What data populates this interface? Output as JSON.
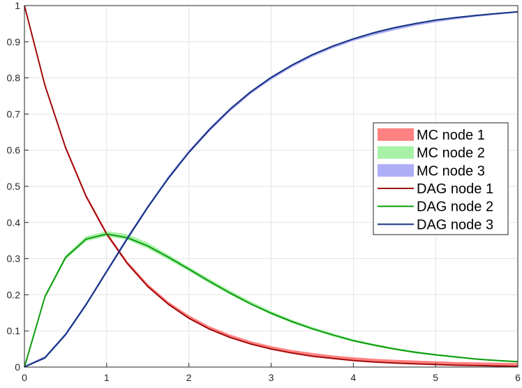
{
  "chart_data": {
    "type": "line",
    "title": "",
    "xlabel": "",
    "ylabel": "",
    "xlim": [
      0,
      6
    ],
    "ylim": [
      0,
      1
    ],
    "xticks": [
      "0",
      "1",
      "2",
      "3",
      "4",
      "5",
      "6"
    ],
    "yticks": [
      "0",
      "0.1",
      "0.2",
      "0.3",
      "0.4",
      "0.5",
      "0.6",
      "0.7",
      "0.8",
      "0.9",
      "1"
    ],
    "grid": true,
    "legend_position": "right",
    "x": [
      0,
      0.25,
      0.5,
      0.75,
      1,
      1.25,
      1.5,
      1.75,
      2,
      2.25,
      2.5,
      2.75,
      3,
      3.25,
      3.5,
      3.75,
      4,
      4.25,
      4.5,
      4.75,
      5,
      5.25,
      5.5,
      5.75,
      6
    ],
    "series": [
      {
        "name": "MC node 1",
        "kind": "band",
        "color": "#ff6b6b",
        "lower": [
          0.995,
          0.774,
          0.603,
          0.468,
          0.364,
          0.283,
          0.22,
          0.171,
          0.133,
          0.103,
          0.08,
          0.062,
          0.048,
          0.037,
          0.029,
          0.022,
          0.017,
          0.013,
          0.01,
          0.008,
          0.006,
          0.004,
          0.003,
          0.002,
          0.001
        ],
        "upper": [
          1.0,
          0.784,
          0.613,
          0.478,
          0.374,
          0.293,
          0.23,
          0.181,
          0.143,
          0.113,
          0.09,
          0.072,
          0.058,
          0.047,
          0.039,
          0.032,
          0.027,
          0.023,
          0.02,
          0.018,
          0.016,
          0.014,
          0.013,
          0.012,
          0.011
        ]
      },
      {
        "name": "MC node 2",
        "kind": "band",
        "color": "#99f099",
        "lower": [
          0.0,
          0.19,
          0.297,
          0.348,
          0.362,
          0.352,
          0.328,
          0.297,
          0.265,
          0.232,
          0.2,
          0.172,
          0.145,
          0.122,
          0.103,
          0.085,
          0.07,
          0.058,
          0.047,
          0.038,
          0.031,
          0.025,
          0.02,
          0.016,
          0.012
        ],
        "upper": [
          0.004,
          0.2,
          0.309,
          0.362,
          0.376,
          0.368,
          0.344,
          0.311,
          0.277,
          0.244,
          0.212,
          0.182,
          0.155,
          0.131,
          0.111,
          0.093,
          0.077,
          0.064,
          0.053,
          0.044,
          0.036,
          0.03,
          0.024,
          0.02,
          0.016
        ]
      },
      {
        "name": "MC node 3",
        "kind": "band",
        "color": "#a0a0f5",
        "lower": [
          0.0,
          0.022,
          0.085,
          0.168,
          0.26,
          0.35,
          0.438,
          0.519,
          0.59,
          0.652,
          0.707,
          0.755,
          0.795,
          0.829,
          0.858,
          0.882,
          0.902,
          0.918,
          0.932,
          0.944,
          0.954,
          0.962,
          0.969,
          0.975,
          0.98
        ],
        "upper": [
          0.004,
          0.03,
          0.094,
          0.178,
          0.27,
          0.362,
          0.448,
          0.529,
          0.6,
          0.662,
          0.717,
          0.764,
          0.804,
          0.837,
          0.866,
          0.89,
          0.909,
          0.925,
          0.939,
          0.95,
          0.96,
          0.967,
          0.974,
          0.979,
          0.984
        ]
      },
      {
        "name": "DAG node 1",
        "kind": "line",
        "color": "#a20a0a",
        "values": [
          1.0,
          0.779,
          0.607,
          0.472,
          0.368,
          0.287,
          0.223,
          0.174,
          0.135,
          0.105,
          0.082,
          0.064,
          0.05,
          0.039,
          0.03,
          0.024,
          0.018,
          0.014,
          0.011,
          0.009,
          0.007,
          0.005,
          0.004,
          0.003,
          0.002
        ]
      },
      {
        "name": "DAG node 2",
        "kind": "line",
        "color": "#0e9a0e",
        "values": [
          0.0,
          0.195,
          0.303,
          0.354,
          0.368,
          0.358,
          0.335,
          0.304,
          0.271,
          0.237,
          0.205,
          0.175,
          0.149,
          0.126,
          0.106,
          0.089,
          0.073,
          0.061,
          0.05,
          0.041,
          0.034,
          0.028,
          0.022,
          0.018,
          0.015
        ]
      },
      {
        "name": "DAG node 3",
        "kind": "line",
        "color": "#13317f",
        "values": [
          0.0,
          0.026,
          0.09,
          0.173,
          0.264,
          0.355,
          0.442,
          0.522,
          0.594,
          0.657,
          0.713,
          0.761,
          0.801,
          0.835,
          0.864,
          0.888,
          0.908,
          0.925,
          0.939,
          0.95,
          0.96,
          0.967,
          0.973,
          0.978,
          0.983
        ]
      }
    ]
  }
}
